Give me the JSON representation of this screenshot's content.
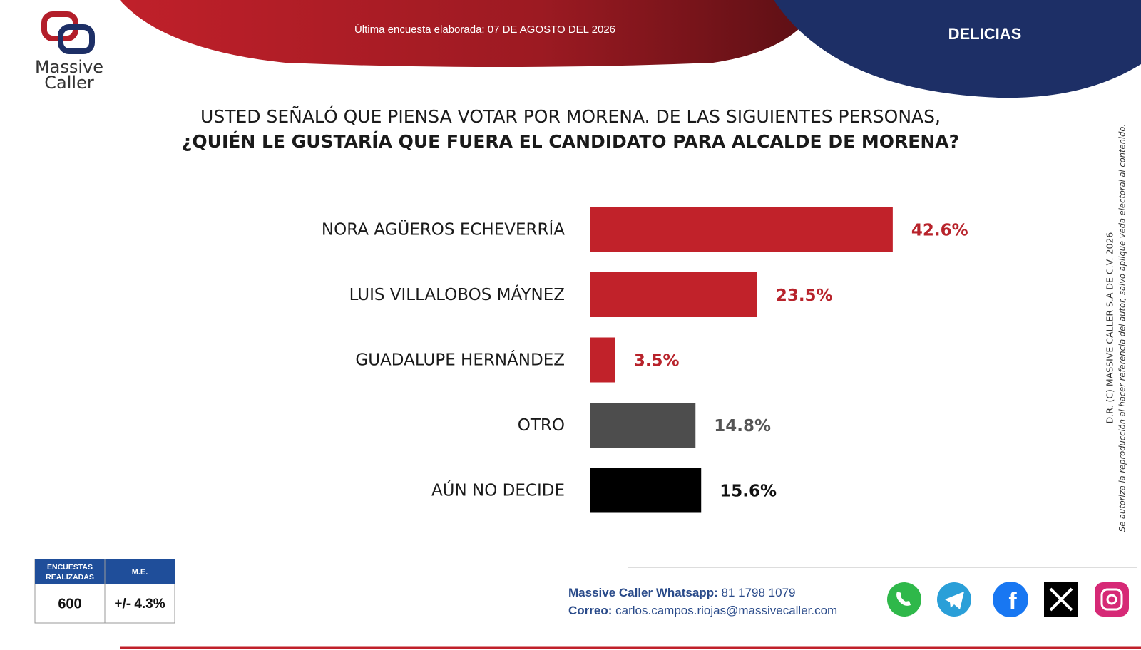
{
  "chart_data": {
    "type": "bar",
    "title": "USTED SEÑALÓ QUE PIENSA VOTAR POR MORENA. DE LAS SIGUIENTES PERSONAS,",
    "subtitle": "¿QUIÉN LE GUSTARÍA QUE FUERA EL CANDIDATO PARA ALCALDE DE MORENA?",
    "categories": [
      "NORA AGÜEROS ECHEVERRÍA",
      "LUIS VILLALOBOS MÁYNEZ",
      "GUADALUPE HERNÁNDEZ",
      "OTRO",
      "AÚN NO DECIDE"
    ],
    "values": [
      42.6,
      23.5,
      3.5,
      14.8,
      15.6
    ],
    "value_labels": [
      "42.6%",
      "23.5%",
      "3.5%",
      "14.8%",
      "15.6%"
    ],
    "colors": [
      "#c1222a",
      "#c1222a",
      "#c1222a",
      "#4d4d4d",
      "#000000"
    ]
  },
  "header": {
    "date": "Última encuesta elaborada: 07 DE AGOSTO DEL 2026",
    "city": "DELICIAS",
    "logo_line1": "Massive",
    "logo_line2": "Caller"
  },
  "footer": {
    "table": {
      "headers": [
        "ENCUESTAS REALIZADAS",
        "M.E."
      ],
      "row": [
        "600",
        "+/- 4.3%"
      ]
    },
    "whatsapp_label": "Massive Caller Whatsapp:",
    "whatsapp": "81 1798 1079",
    "email_label": "Correo:",
    "email": "carlos.campos.riojas@massivecaller.com"
  },
  "copyright": {
    "line1": "D.R. (C) MASSIVE CALLER S.A DE C.V. 2026",
    "line2": "Se autoriza la reproducción al hacer referencia del autor, salvo aplique veda electoral al contenido."
  }
}
